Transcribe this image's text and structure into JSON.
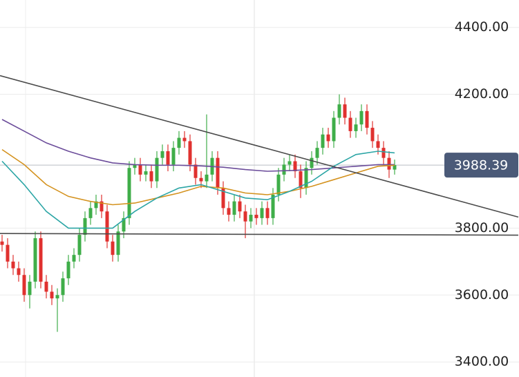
{
  "chart_data": {
    "type": "candlestick",
    "xlim": [
      -0.375,
      93.375
    ],
    "ylim": [
      3355,
      4482
    ],
    "yticks": [
      {
        "value": 4400,
        "label": "4400.00"
      },
      {
        "value": 4200,
        "label": "4200.00"
      },
      {
        "value": 3800,
        "label": "3800.00"
      },
      {
        "value": 3600,
        "label": "3600.00"
      },
      {
        "value": 3400,
        "label": "3400.00"
      }
    ],
    "grid": true,
    "up_color": "#3fae49",
    "down_color": "#e0312f",
    "candles": {
      "open": [
        3760,
        3750,
        3700,
        3680,
        3660,
        3600,
        3640,
        3770,
        3640,
        3610,
        3590,
        3600,
        3650,
        3700,
        3720,
        3780,
        3830,
        3860,
        3880,
        3850,
        3760,
        3720,
        3790,
        3830,
        3980,
        3990,
        3960,
        3970,
        3940,
        4010,
        4030,
        3990,
        4040,
        4070,
        4060,
        3990,
        3950,
        3940,
        3960,
        4010,
        3920,
        3860,
        3840,
        3880,
        3850,
        3820,
        3840,
        3830,
        3860,
        3830,
        3900,
        3960,
        3990,
        4000,
        3970,
        3920,
        3980,
        4010,
        4040,
        4080,
        4060,
        4130,
        4170,
        4130,
        4090,
        4110,
        4150,
        4100,
        4060,
        4040,
        4010,
        3975
      ],
      "high": [
        3780,
        3770,
        3720,
        3700,
        3680,
        3660,
        3790,
        3790,
        3660,
        3630,
        3620,
        3670,
        3720,
        3740,
        3800,
        3850,
        3880,
        3900,
        3900,
        3870,
        3780,
        3810,
        3850,
        4000,
        4010,
        4010,
        3990,
        3990,
        4030,
        4050,
        4050,
        4060,
        4090,
        4090,
        4080,
        4010,
        3970,
        4140,
        4030,
        4030,
        3940,
        3880,
        3900,
        3900,
        3870,
        3860,
        3860,
        3880,
        3880,
        3920,
        3980,
        4010,
        4020,
        4020,
        3990,
        4000,
        4030,
        4060,
        4100,
        4100,
        4150,
        4200,
        4190,
        4150,
        4130,
        4170,
        4170,
        4120,
        4080,
        4060,
        4030,
        4005
      ],
      "low": [
        3730,
        3680,
        3660,
        3640,
        3580,
        3560,
        3620,
        3620,
        3590,
        3570,
        3490,
        3580,
        3630,
        3680,
        3700,
        3760,
        3810,
        3840,
        3830,
        3740,
        3700,
        3700,
        3770,
        3810,
        3960,
        3940,
        3940,
        3920,
        3920,
        3990,
        3970,
        3970,
        4020,
        4040,
        3970,
        3930,
        3920,
        3920,
        3940,
        3900,
        3840,
        3820,
        3820,
        3830,
        3770,
        3800,
        3810,
        3810,
        3810,
        3810,
        3880,
        3940,
        3970,
        3950,
        3890,
        3900,
        3960,
        3990,
        4020,
        4040,
        4040,
        4110,
        4110,
        4070,
        4070,
        4090,
        4080,
        4040,
        4020,
        3990,
        3950,
        3960
      ],
      "close": [
        3750,
        3700,
        3680,
        3660,
        3600,
        3640,
        3770,
        3640,
        3610,
        3590,
        3600,
        3650,
        3700,
        3720,
        3780,
        3830,
        3860,
        3880,
        3850,
        3760,
        3720,
        3790,
        3830,
        3980,
        3990,
        3960,
        3970,
        3940,
        4010,
        4030,
        3990,
        4040,
        4070,
        4060,
        3990,
        3950,
        3940,
        3960,
        4010,
        3920,
        3860,
        3840,
        3880,
        3850,
        3820,
        3840,
        3830,
        3860,
        3830,
        3900,
        3960,
        3990,
        4000,
        3970,
        3920,
        3980,
        4010,
        4040,
        4080,
        4060,
        4130,
        4170,
        4130,
        4090,
        4110,
        4150,
        4100,
        4060,
        4040,
        4010,
        3975,
        3988.39
      ]
    },
    "price_label": "3988.39",
    "lines": [
      {
        "color": "#6b4c9a",
        "x": [
          0,
          4,
          8,
          12,
          16,
          20,
          24,
          28,
          32,
          36,
          40,
          44,
          48,
          52,
          56,
          60,
          64,
          68,
          71
        ],
        "values": [
          4125,
          4090,
          4055,
          4030,
          4010,
          3995,
          3990,
          3988,
          3988,
          3986,
          3982,
          3975,
          3970,
          3972,
          3975,
          3980,
          3985,
          3990,
          3990
        ]
      },
      {
        "color": "#d4921e",
        "x": [
          0,
          4,
          8,
          12,
          16,
          20,
          24,
          28,
          32,
          36,
          40,
          44,
          48,
          52,
          56,
          60,
          64,
          68,
          71
        ],
        "values": [
          4035,
          3990,
          3930,
          3895,
          3880,
          3870,
          3875,
          3890,
          3905,
          3925,
          3920,
          3905,
          3900,
          3910,
          3925,
          3945,
          3965,
          3985,
          3988
        ]
      },
      {
        "color": "#2ba5a5",
        "x": [
          0,
          4,
          8,
          12,
          16,
          20,
          24,
          28,
          32,
          36,
          40,
          44,
          48,
          52,
          56,
          60,
          64,
          68,
          71
        ],
        "values": [
          4000,
          3930,
          3850,
          3800,
          3800,
          3800,
          3850,
          3890,
          3920,
          3930,
          3910,
          3890,
          3885,
          3910,
          3940,
          3985,
          4020,
          4030,
          4025
        ]
      },
      {
        "color": "#4a4a4a",
        "x": [
          -0.375,
          93.375
        ],
        "values": [
          4256,
          3833
        ]
      },
      {
        "color": "#4a4a4a",
        "x": [
          -0.375,
          93.375
        ],
        "values": [
          3784,
          3779
        ]
      }
    ]
  }
}
